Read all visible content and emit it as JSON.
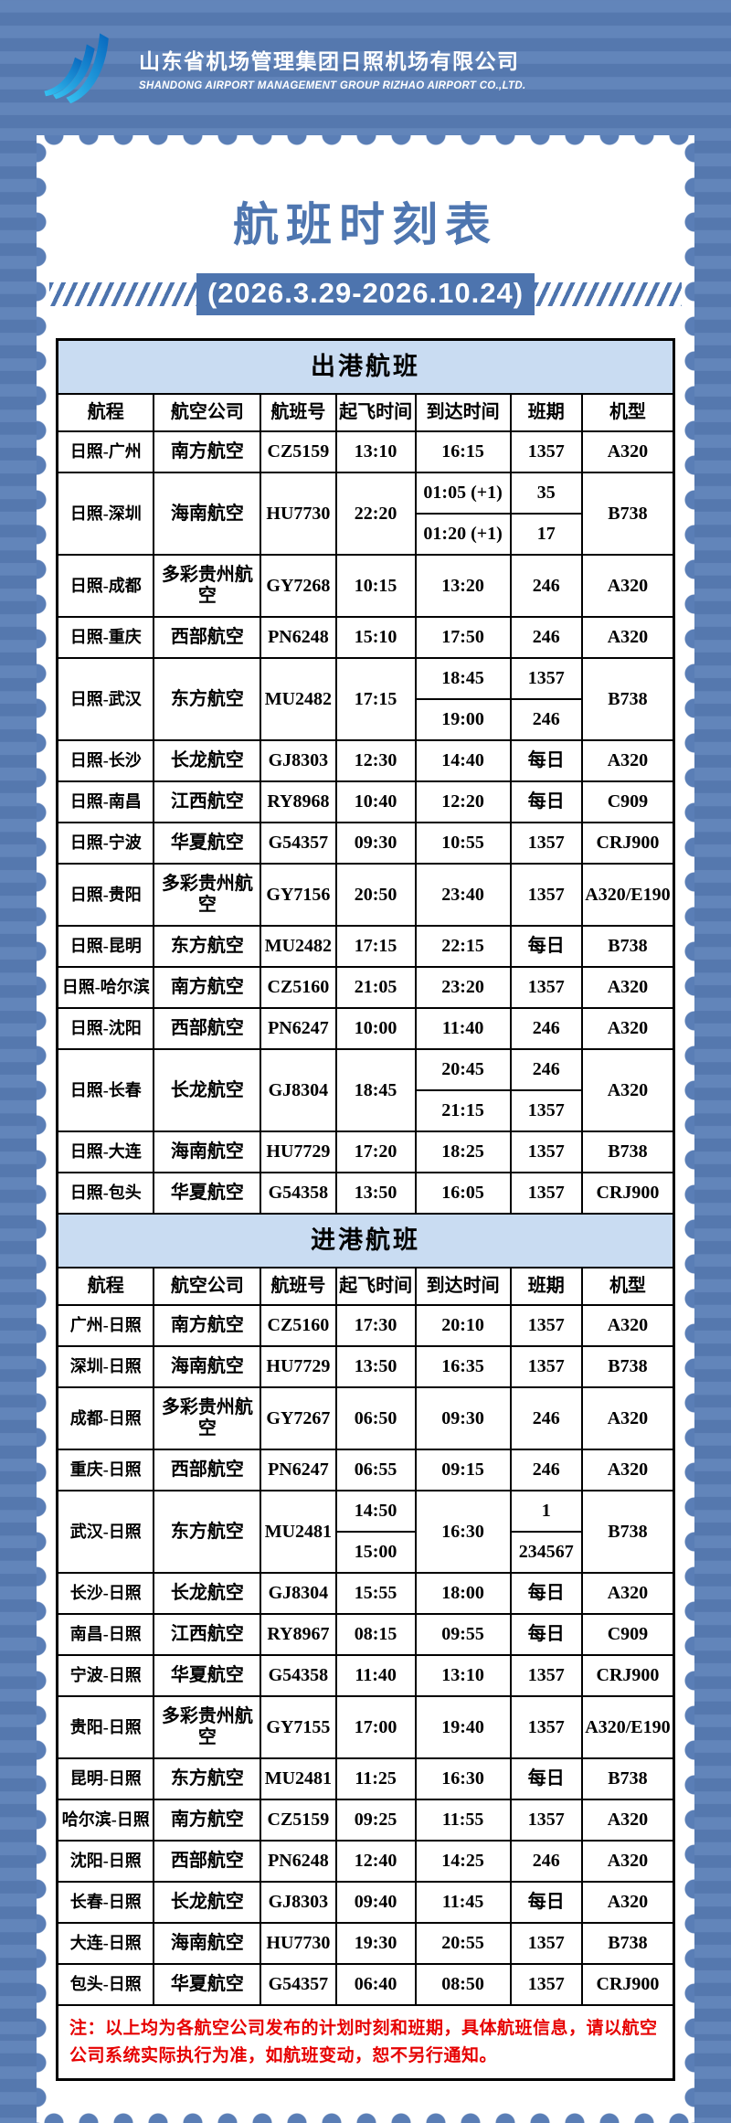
{
  "header": {
    "logo_icon": "airport-swoosh-logo",
    "company_cn": "山东省机场管理集团日照机场有限公司",
    "company_en": "SHANDONG AIRPORT MANAGEMENT GROUP RIZHAO AIRPORT CO.,LTD."
  },
  "card": {
    "title": "航班时刻表",
    "date_range": "(2026.3.29-2026.10.24)"
  },
  "colors": {
    "page_bg": "#5a7eb6",
    "accent_blue": "#4d74ae",
    "title_blue": "#4e76b0",
    "section_band_bg": "#c9dcf2",
    "note_red": "#e60000",
    "logo_blue_light": "#36c3f2",
    "logo_blue_dark": "#0766bd"
  },
  "timetable": {
    "columns": [
      "航程",
      "航空公司",
      "航班号",
      "起飞时间",
      "到达时间",
      "班期",
      "机型"
    ],
    "sections": [
      {
        "title": "出港航班",
        "rows": [
          {
            "route": "日照-广州",
            "airline": "南方航空",
            "flight": "CZ5159",
            "dep": "13:10",
            "arr": "16:15",
            "days": "1357",
            "aircraft": "A320"
          },
          {
            "route": "日照-深圳",
            "airline": "海南航空",
            "flight": "HU7730",
            "dep": "22:20",
            "arr": null,
            "aircraft": "B738",
            "sub": [
              {
                "arr": "01:05 (+1)",
                "days": "35"
              },
              {
                "arr": "01:20 (+1)",
                "days": "17"
              }
            ]
          },
          {
            "route": "日照-成都",
            "airline": "多彩贵州航空",
            "flight": "GY7268",
            "dep": "10:15",
            "arr": "13:20",
            "days": "246",
            "aircraft": "A320"
          },
          {
            "route": "日照-重庆",
            "airline": "西部航空",
            "flight": "PN6248",
            "dep": "15:10",
            "arr": "17:50",
            "days": "246",
            "aircraft": "A320"
          },
          {
            "route": "日照-武汉",
            "airline": "东方航空",
            "flight": "MU2482",
            "dep": "17:15",
            "arr": null,
            "aircraft": "B738",
            "sub": [
              {
                "arr": "18:45",
                "days": "1357"
              },
              {
                "arr": "19:00",
                "days": "246"
              }
            ]
          },
          {
            "route": "日照-长沙",
            "airline": "长龙航空",
            "flight": "GJ8303",
            "dep": "12:30",
            "arr": "14:40",
            "days": "每日",
            "aircraft": "A320"
          },
          {
            "route": "日照-南昌",
            "airline": "江西航空",
            "flight": "RY8968",
            "dep": "10:40",
            "arr": "12:20",
            "days": "每日",
            "aircraft": "C909"
          },
          {
            "route": "日照-宁波",
            "airline": "华夏航空",
            "flight": "G54357",
            "dep": "09:30",
            "arr": "10:55",
            "days": "1357",
            "aircraft": "CRJ900"
          },
          {
            "route": "日照-贵阳",
            "airline": "多彩贵州航空",
            "flight": "GY7156",
            "dep": "20:50",
            "arr": "23:40",
            "days": "1357",
            "aircraft": "A320/E190"
          },
          {
            "route": "日照-昆明",
            "airline": "东方航空",
            "flight": "MU2482",
            "dep": "17:15",
            "arr": "22:15",
            "days": "每日",
            "aircraft": "B738"
          },
          {
            "route": "日照-哈尔滨",
            "airline": "南方航空",
            "flight": "CZ5160",
            "dep": "21:05",
            "arr": "23:20",
            "days": "1357",
            "aircraft": "A320"
          },
          {
            "route": "日照-沈阳",
            "airline": "西部航空",
            "flight": "PN6247",
            "dep": "10:00",
            "arr": "11:40",
            "days": "246",
            "aircraft": "A320"
          },
          {
            "route": "日照-长春",
            "airline": "长龙航空",
            "flight": "GJ8304",
            "dep": "18:45",
            "arr": null,
            "aircraft": "A320",
            "sub": [
              {
                "arr": "20:45",
                "days": "246"
              },
              {
                "arr": "21:15",
                "days": "1357"
              }
            ]
          },
          {
            "route": "日照-大连",
            "airline": "海南航空",
            "flight": "HU7729",
            "dep": "17:20",
            "arr": "18:25",
            "days": "1357",
            "aircraft": "B738"
          },
          {
            "route": "日照-包头",
            "airline": "华夏航空",
            "flight": "G54358",
            "dep": "13:50",
            "arr": "16:05",
            "days": "1357",
            "aircraft": "CRJ900"
          }
        ]
      },
      {
        "title": "进港航班",
        "rows": [
          {
            "route": "广州-日照",
            "airline": "南方航空",
            "flight": "CZ5160",
            "dep": "17:30",
            "arr": "20:10",
            "days": "1357",
            "aircraft": "A320"
          },
          {
            "route": "深圳-日照",
            "airline": "海南航空",
            "flight": "HU7729",
            "dep": "13:50",
            "arr": "16:35",
            "days": "1357",
            "aircraft": "B738"
          },
          {
            "route": "成都-日照",
            "airline": "多彩贵州航空",
            "flight": "GY7267",
            "dep": "06:50",
            "arr": "09:30",
            "days": "246",
            "aircraft": "A320"
          },
          {
            "route": "重庆-日照",
            "airline": "西部航空",
            "flight": "PN6247",
            "dep": "06:55",
            "arr": "09:15",
            "days": "246",
            "aircraft": "A320"
          },
          {
            "route": "武汉-日照",
            "airline": "东方航空",
            "flight": "MU2481",
            "dep": null,
            "arr": "16:30",
            "aircraft": "B738",
            "sub": [
              {
                "dep": "14:50",
                "days": "1"
              },
              {
                "dep": "15:00",
                "days": "234567"
              }
            ]
          },
          {
            "route": "长沙-日照",
            "airline": "长龙航空",
            "flight": "GJ8304",
            "dep": "15:55",
            "arr": "18:00",
            "days": "每日",
            "aircraft": "A320"
          },
          {
            "route": "南昌-日照",
            "airline": "江西航空",
            "flight": "RY8967",
            "dep": "08:15",
            "arr": "09:55",
            "days": "每日",
            "aircraft": "C909"
          },
          {
            "route": "宁波-日照",
            "airline": "华夏航空",
            "flight": "G54358",
            "dep": "11:40",
            "arr": "13:10",
            "days": "1357",
            "aircraft": "CRJ900"
          },
          {
            "route": "贵阳-日照",
            "airline": "多彩贵州航空",
            "flight": "GY7155",
            "dep": "17:00",
            "arr": "19:40",
            "days": "1357",
            "aircraft": "A320/E190"
          },
          {
            "route": "昆明-日照",
            "airline": "东方航空",
            "flight": "MU2481",
            "dep": "11:25",
            "arr": "16:30",
            "days": "每日",
            "aircraft": "B738"
          },
          {
            "route": "哈尔滨-日照",
            "airline": "南方航空",
            "flight": "CZ5159",
            "dep": "09:25",
            "arr": "11:55",
            "days": "1357",
            "aircraft": "A320"
          },
          {
            "route": "沈阳-日照",
            "airline": "西部航空",
            "flight": "PN6248",
            "dep": "12:40",
            "arr": "14:25",
            "days": "246",
            "aircraft": "A320"
          },
          {
            "route": "长春-日照",
            "airline": "长龙航空",
            "flight": "GJ8303",
            "dep": "09:40",
            "arr": "11:45",
            "days": "每日",
            "aircraft": "A320"
          },
          {
            "route": "大连-日照",
            "airline": "海南航空",
            "flight": "HU7730",
            "dep": "19:30",
            "arr": "20:55",
            "days": "1357",
            "aircraft": "B738"
          },
          {
            "route": "包头-日照",
            "airline": "华夏航空",
            "flight": "G54357",
            "dep": "06:40",
            "arr": "08:50",
            "days": "1357",
            "aircraft": "CRJ900"
          }
        ]
      }
    ],
    "note": "注：以上均为各航空公司发布的计划时刻和班期，具体航班信息，请以航空公司系统实际执行为准，如航班变动，恕不另行通知。"
  }
}
